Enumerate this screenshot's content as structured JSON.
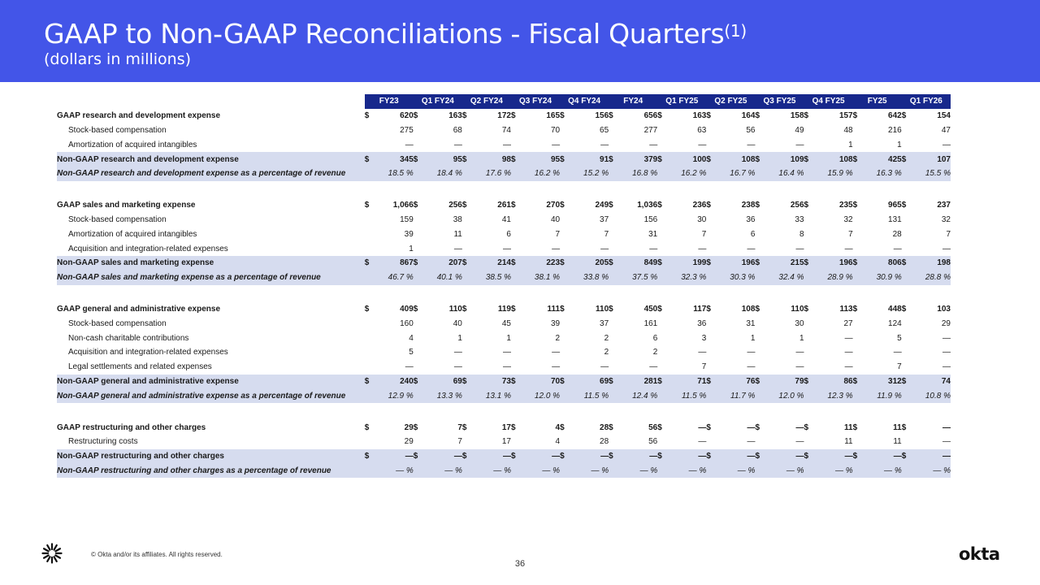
{
  "header": {
    "title": "GAAP to Non-GAAP Reconciliations - Fiscal Quarters",
    "title_footnote": "(1)",
    "subtitle": "(dollars in millions)"
  },
  "columns": [
    "FY23",
    "Q1 FY24",
    "Q2 FY24",
    "Q3 FY24",
    "Q4 FY24",
    "FY24",
    "Q1 FY25",
    "Q2 FY25",
    "Q3 FY25",
    "Q4 FY25",
    "FY25",
    "Q1 FY26"
  ],
  "sections": [
    {
      "rows": [
        {
          "label": "GAAP research and development expense",
          "style": "bold",
          "currency": true,
          "values": [
            "620",
            "163",
            "172",
            "165",
            "156",
            "656",
            "163",
            "164",
            "158",
            "157",
            "642",
            "154"
          ]
        },
        {
          "label": "Stock-based compensation",
          "style": "indent",
          "currency": false,
          "values": [
            "275",
            "68",
            "74",
            "70",
            "65",
            "277",
            "63",
            "56",
            "49",
            "48",
            "216",
            "47"
          ]
        },
        {
          "label": "Amortization of acquired intangibles",
          "style": "indent",
          "currency": false,
          "values": [
            "—",
            "—",
            "—",
            "—",
            "—",
            "—",
            "—",
            "—",
            "—",
            "1",
            "1",
            "—"
          ]
        },
        {
          "label": "Non-GAAP research and development expense",
          "style": "total",
          "currency": true,
          "values": [
            "345",
            "95",
            "98",
            "95",
            "91",
            "379",
            "100",
            "108",
            "109",
            "108",
            "425",
            "107"
          ]
        },
        {
          "label": "Non-GAAP research and development expense as a percentage of revenue",
          "style": "pct",
          "currency": false,
          "values": [
            "18.5 %",
            "18.4 %",
            "17.6 %",
            "16.2 %",
            "15.2 %",
            "16.8 %",
            "16.2 %",
            "16.7 %",
            "16.4 %",
            "15.9 %",
            "16.3 %",
            "15.5 %"
          ]
        }
      ]
    },
    {
      "rows": [
        {
          "label": "GAAP sales and marketing expense",
          "style": "bold",
          "currency": true,
          "values": [
            "1,066",
            "256",
            "261",
            "270",
            "249",
            "1,036",
            "236",
            "238",
            "256",
            "235",
            "965",
            "237"
          ]
        },
        {
          "label": "Stock-based compensation",
          "style": "indent",
          "currency": false,
          "values": [
            "159",
            "38",
            "41",
            "40",
            "37",
            "156",
            "30",
            "36",
            "33",
            "32",
            "131",
            "32"
          ]
        },
        {
          "label": "Amortization of acquired intangibles",
          "style": "indent",
          "currency": false,
          "values": [
            "39",
            "11",
            "6",
            "7",
            "7",
            "31",
            "7",
            "6",
            "8",
            "7",
            "28",
            "7"
          ]
        },
        {
          "label": "Acquisition and integration-related expenses",
          "style": "indent",
          "currency": false,
          "values": [
            "1",
            "—",
            "—",
            "—",
            "—",
            "—",
            "—",
            "—",
            "—",
            "—",
            "—",
            "—"
          ]
        },
        {
          "label": "Non-GAAP sales and marketing expense",
          "style": "total",
          "currency": true,
          "values": [
            "867",
            "207",
            "214",
            "223",
            "205",
            "849",
            "199",
            "196",
            "215",
            "196",
            "806",
            "198"
          ]
        },
        {
          "label": "Non-GAAP sales and marketing expense as a percentage of revenue",
          "style": "pct",
          "currency": false,
          "values": [
            "46.7 %",
            "40.1 %",
            "38.5 %",
            "38.1 %",
            "33.8 %",
            "37.5 %",
            "32.3 %",
            "30.3 %",
            "32.4 %",
            "28.9 %",
            "30.9 %",
            "28.8 %"
          ]
        }
      ]
    },
    {
      "rows": [
        {
          "label": "GAAP general and administrative expense",
          "style": "bold",
          "currency": true,
          "values": [
            "409",
            "110",
            "119",
            "111",
            "110",
            "450",
            "117",
            "108",
            "110",
            "113",
            "448",
            "103"
          ]
        },
        {
          "label": "Stock-based compensation",
          "style": "indent",
          "currency": false,
          "values": [
            "160",
            "40",
            "45",
            "39",
            "37",
            "161",
            "36",
            "31",
            "30",
            "27",
            "124",
            "29"
          ]
        },
        {
          "label": "Non-cash charitable contributions",
          "style": "indent",
          "currency": false,
          "values": [
            "4",
            "1",
            "1",
            "2",
            "2",
            "6",
            "3",
            "1",
            "1",
            "—",
            "5",
            "—"
          ]
        },
        {
          "label": "Acquisition and integration-related expenses",
          "style": "indent",
          "currency": false,
          "values": [
            "5",
            "—",
            "—",
            "—",
            "2",
            "2",
            "—",
            "—",
            "—",
            "—",
            "—",
            "—"
          ]
        },
        {
          "label": "Legal settlements and related expenses",
          "style": "indent",
          "currency": false,
          "values": [
            "—",
            "—",
            "—",
            "—",
            "—",
            "—",
            "7",
            "—",
            "—",
            "—",
            "7",
            "—"
          ]
        },
        {
          "label": "Non-GAAP general and administrative expense",
          "style": "total",
          "currency": true,
          "values": [
            "240",
            "69",
            "73",
            "70",
            "69",
            "281",
            "71",
            "76",
            "79",
            "86",
            "312",
            "74"
          ]
        },
        {
          "label": "Non-GAAP general and administrative expense as a percentage of revenue",
          "style": "pct",
          "currency": false,
          "values": [
            "12.9 %",
            "13.3 %",
            "13.1 %",
            "12.0 %",
            "11.5 %",
            "12.4 %",
            "11.5 %",
            "11.7 %",
            "12.0 %",
            "12.3 %",
            "11.9 %",
            "10.8 %"
          ]
        }
      ]
    },
    {
      "rows": [
        {
          "label": "GAAP restructuring and other charges",
          "style": "bold",
          "currency": true,
          "values": [
            "29",
            "7",
            "17",
            "4",
            "28",
            "56",
            "—",
            "—",
            "—",
            "11",
            "11",
            "—"
          ]
        },
        {
          "label": "Restructuring costs",
          "style": "indent",
          "currency": false,
          "values": [
            "29",
            "7",
            "17",
            "4",
            "28",
            "56",
            "—",
            "—",
            "—",
            "11",
            "11",
            "—"
          ]
        },
        {
          "label": "Non-GAAP restructuring and other charges",
          "style": "total",
          "currency": true,
          "values": [
            "—",
            "—",
            "—",
            "—",
            "—",
            "—",
            "—",
            "—",
            "—",
            "—",
            "—",
            "—"
          ]
        },
        {
          "label": "Non-GAAP restructuring and other charges as a percentage of revenue",
          "style": "pct",
          "currency": false,
          "values": [
            "— %",
            "— %",
            "— %",
            "— %",
            "— %",
            "— %",
            "— %",
            "— %",
            "— %",
            "— %",
            "— %",
            "— %"
          ]
        }
      ]
    }
  ],
  "currency_symbol": "$",
  "footer": {
    "copyright": "© Okta and/or its affiliates. All rights reserved.",
    "page_number": "36",
    "brand": "okta"
  },
  "colors": {
    "header_bg": "#4355e8",
    "column_header_bg": "#17288c",
    "highlight_row": "#d6dcef"
  }
}
